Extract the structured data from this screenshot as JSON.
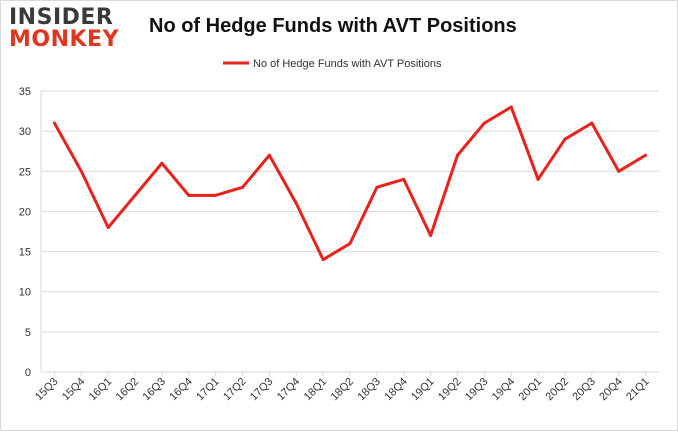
{
  "logo": {
    "line1": "INSIDER",
    "line2": "MONKEY"
  },
  "colors": {
    "series": "#e8231c",
    "grid": "#d9d9d9",
    "brand_red": "#e0361f",
    "brand_gray": "#3a3a3a"
  },
  "chart_data": {
    "type": "line",
    "title": "No of Hedge Funds with AVT Positions",
    "xlabel": "",
    "ylabel": "",
    "categories": [
      "15Q3",
      "15Q4",
      "16Q1",
      "16Q2",
      "16Q3",
      "16Q4",
      "17Q1",
      "17Q2",
      "17Q3",
      "17Q4",
      "18Q1",
      "18Q2",
      "18Q3",
      "18Q4",
      "19Q1",
      "19Q2",
      "19Q3",
      "19Q4",
      "20Q1",
      "20Q2",
      "20Q3",
      "20Q4",
      "21Q1"
    ],
    "series": [
      {
        "name": "No of Hedge Funds with AVT Positions",
        "values": [
          31,
          25,
          18,
          22,
          26,
          22,
          22,
          23,
          27,
          21,
          14,
          16,
          23,
          24,
          17,
          27,
          31,
          33,
          24,
          29,
          31,
          25,
          27
        ]
      }
    ],
    "ylim": [
      0,
      35
    ],
    "yticks": [
      0,
      5,
      10,
      15,
      20,
      25,
      30,
      35
    ],
    "grid": true,
    "legend": "top-center"
  }
}
